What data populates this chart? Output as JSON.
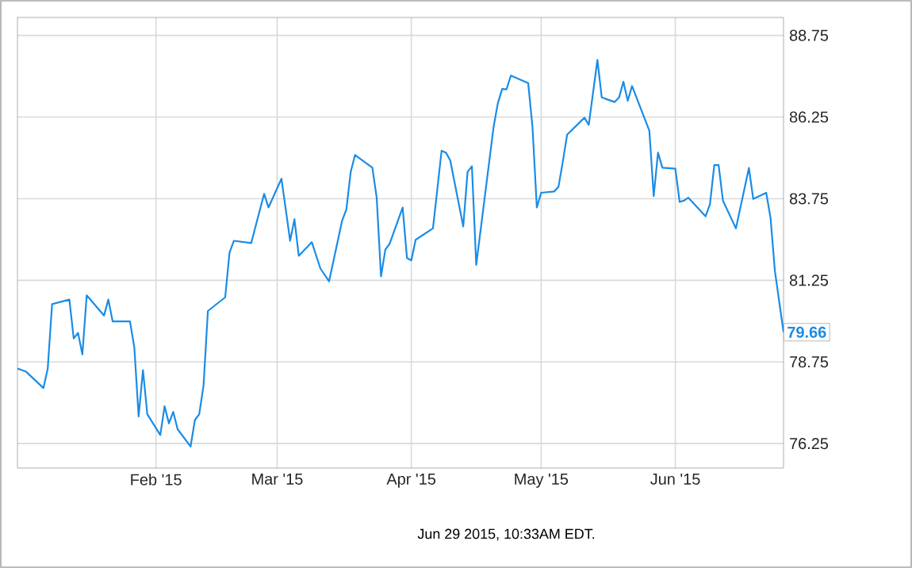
{
  "chart_data": {
    "type": "line",
    "x": [
      "2014-12-31",
      "2015-01-02",
      "2015-01-06",
      "2015-01-07",
      "2015-01-08",
      "2015-01-12",
      "2015-01-13",
      "2015-01-14",
      "2015-01-15",
      "2015-01-16",
      "2015-01-20",
      "2015-01-21",
      "2015-01-22",
      "2015-01-26",
      "2015-01-27",
      "2015-01-28",
      "2015-01-29",
      "2015-01-30",
      "2015-02-02",
      "2015-02-03",
      "2015-02-04",
      "2015-02-05",
      "2015-02-06",
      "2015-02-09",
      "2015-02-10",
      "2015-02-11",
      "2015-02-12",
      "2015-02-13",
      "2015-02-17",
      "2015-02-18",
      "2015-02-19",
      "2015-02-23",
      "2015-02-26",
      "2015-02-27",
      "2015-03-02",
      "2015-03-04",
      "2015-03-05",
      "2015-03-06",
      "2015-03-09",
      "2015-03-11",
      "2015-03-13",
      "2015-03-16",
      "2015-03-17",
      "2015-03-18",
      "2015-03-19",
      "2015-03-23",
      "2015-03-24",
      "2015-03-25",
      "2015-03-26",
      "2015-03-27",
      "2015-03-30",
      "2015-03-31",
      "2015-04-01",
      "2015-04-02",
      "2015-04-06",
      "2015-04-08",
      "2015-04-09",
      "2015-04-10",
      "2015-04-13",
      "2015-04-14",
      "2015-04-15",
      "2015-04-16",
      "2015-04-20",
      "2015-04-21",
      "2015-04-22",
      "2015-04-23",
      "2015-04-24",
      "2015-04-28",
      "2015-04-29",
      "2015-04-30",
      "2015-05-01",
      "2015-05-04",
      "2015-05-05",
      "2015-05-06",
      "2015-05-07",
      "2015-05-11",
      "2015-05-12",
      "2015-05-14",
      "2015-05-15",
      "2015-05-18",
      "2015-05-19",
      "2015-05-20",
      "2015-05-21",
      "2015-05-22",
      "2015-05-26",
      "2015-05-27",
      "2015-05-28",
      "2015-05-29",
      "2015-06-01",
      "2015-06-02",
      "2015-06-03",
      "2015-06-04",
      "2015-06-08",
      "2015-06-09",
      "2015-06-10",
      "2015-06-11",
      "2015-06-12",
      "2015-06-15",
      "2015-06-18",
      "2015-06-19",
      "2015-06-22",
      "2015-06-23",
      "2015-06-24",
      "2015-06-26"
    ],
    "series": [
      {
        "color": "#1a8ce6",
        "values": [
          78.55,
          78.45,
          77.95,
          78.55,
          80.52,
          80.66,
          79.47,
          79.64,
          78.98,
          80.79,
          80.17,
          80.66,
          79.99,
          79.99,
          79.2,
          77.08,
          78.5,
          77.15,
          76.51,
          77.39,
          76.87,
          77.22,
          76.69,
          76.16,
          76.97,
          77.15,
          78.03,
          80.31,
          80.73,
          82.1,
          82.46,
          82.39,
          83.9,
          83.48,
          84.36,
          82.46,
          83.12,
          82.0,
          82.42,
          81.61,
          81.22,
          83.07,
          83.42,
          84.57,
          85.09,
          84.7,
          83.78,
          81.37,
          82.19,
          82.37,
          83.48,
          81.93,
          81.86,
          82.49,
          82.84,
          85.22,
          85.16,
          84.92,
          82.9,
          84.57,
          84.74,
          81.72,
          85.94,
          86.68,
          87.11,
          87.1,
          87.52,
          87.29,
          85.94,
          83.48,
          83.93,
          83.97,
          84.11,
          84.88,
          85.71,
          86.23,
          86.01,
          88.0,
          86.85,
          86.71,
          86.85,
          87.33,
          86.75,
          87.2,
          85.83,
          83.83,
          85.16,
          84.7,
          84.67,
          83.65,
          83.69,
          83.78,
          83.21,
          83.58,
          84.78,
          84.78,
          83.69,
          82.84,
          84.69,
          83.74,
          83.93,
          83.16,
          81.54,
          79.66
        ],
        "value_labels": [
          null,
          null,
          null,
          null,
          null,
          null,
          null,
          null,
          null,
          null,
          null,
          null,
          null,
          null,
          null,
          null,
          null,
          null,
          null,
          null,
          null,
          null,
          null,
          null,
          null,
          null,
          null,
          null,
          null,
          null,
          null,
          null,
          null,
          null,
          null,
          null,
          null,
          null,
          null,
          null,
          null,
          null,
          null,
          null,
          null,
          null,
          null,
          null,
          null,
          null,
          null,
          null,
          null,
          null,
          null,
          null,
          null,
          null,
          null,
          null,
          null,
          null,
          null,
          null,
          null,
          null,
          null,
          null,
          null,
          null,
          null,
          null,
          null,
          null,
          null,
          null,
          null,
          null,
          null,
          null,
          null,
          null,
          null,
          null,
          null,
          null,
          null,
          null,
          null,
          null,
          null,
          null,
          null,
          null,
          null,
          null,
          null,
          null,
          null,
          null,
          null,
          null,
          null,
          "79.66"
        ]
      }
    ],
    "xlim": [
      "2014-12-31",
      "2015-06-26"
    ],
    "xticks": [
      {
        "value": "2015-02-01",
        "label": "Feb '15"
      },
      {
        "value": "2015-03-01",
        "label": "Mar '15"
      },
      {
        "value": "2015-04-01",
        "label": "Apr '15"
      },
      {
        "value": "2015-05-01",
        "label": "May '15"
      },
      {
        "value": "2015-06-01",
        "label": "Jun '15"
      }
    ],
    "ylim": [
      75.5,
      89.3
    ],
    "yticks": [
      76.25,
      78.75,
      81.25,
      83.75,
      86.25,
      88.75
    ],
    "grid": true,
    "marker": "none",
    "line_style": "solid",
    "annotations": [
      "Jun 29 2015, 10:33AM EDT."
    ]
  }
}
